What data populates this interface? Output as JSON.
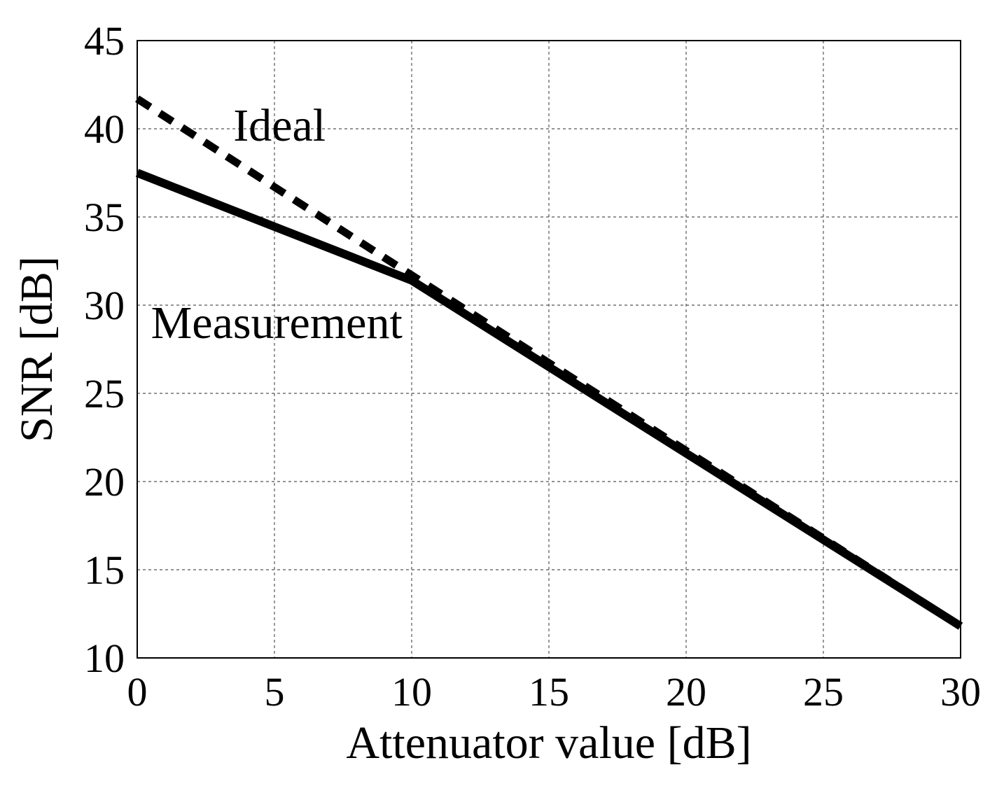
{
  "chart_data": {
    "type": "line",
    "title": "",
    "xlabel": "Attenuator value [dB]",
    "ylabel": "SNR [dB]",
    "xlim": [
      0,
      30
    ],
    "ylim": [
      10,
      45
    ],
    "xticks": [
      0,
      5,
      10,
      15,
      20,
      25,
      30
    ],
    "yticks": [
      10,
      15,
      20,
      25,
      30,
      35,
      40,
      45
    ],
    "grid": true,
    "legend": "none",
    "series": [
      {
        "label": "Ideal",
        "style": "dashed",
        "color": "#000000",
        "x": [
          0,
          10,
          30
        ],
        "y": [
          41.7,
          31.7,
          11.8
        ]
      },
      {
        "label": "Measurement",
        "style": "solid",
        "color": "#000000",
        "x": [
          0,
          10,
          30
        ],
        "y": [
          37.5,
          31.4,
          11.8
        ]
      }
    ],
    "annotations": [
      {
        "text": "Ideal",
        "x": 3.5,
        "y": 40.2
      },
      {
        "text": "Measurement",
        "x": 0.5,
        "y": 29.0
      }
    ]
  }
}
